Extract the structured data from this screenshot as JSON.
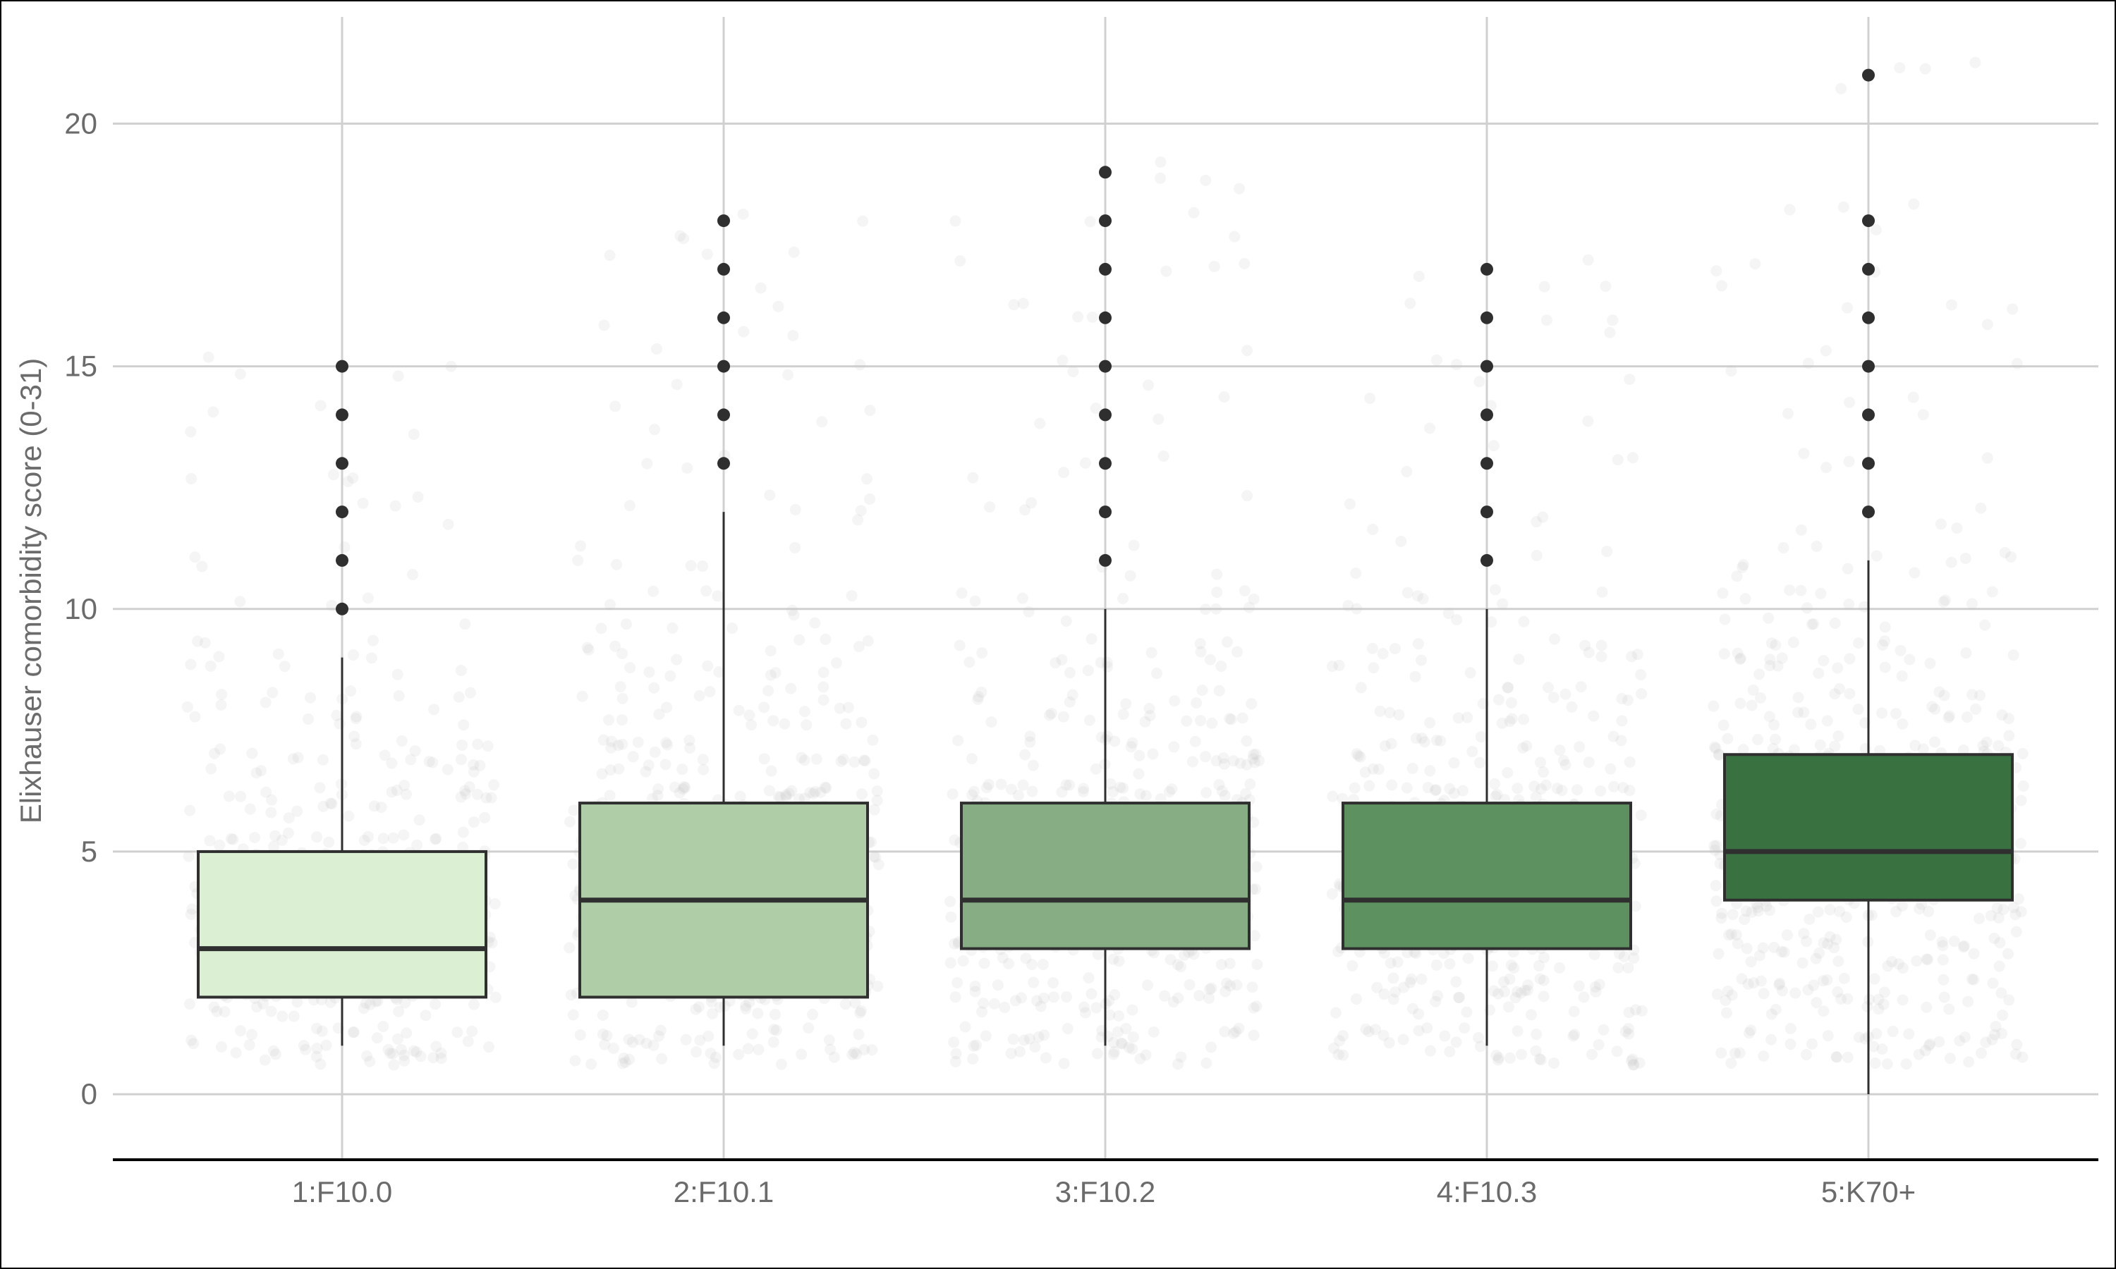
{
  "chart_data": {
    "type": "box",
    "title": "",
    "xlabel": "",
    "ylabel": "Elixhauser comorbidity score (0-31)",
    "ylim": [
      -1.35,
      22.2
    ],
    "y_ticks": [
      0,
      5,
      10,
      15,
      20
    ],
    "grid": true,
    "legend": "none",
    "categories": [
      "1:F10.0",
      "2:F10.1",
      "3:F10.2",
      "4:F10.3",
      "5:K70+"
    ],
    "boxes": [
      {
        "category": "1:F10.0",
        "whisker_low": 1,
        "q1": 2,
        "median": 3,
        "q3": 5,
        "whisker_high": 9,
        "outliers": [
          10,
          11,
          12,
          13,
          14,
          15
        ],
        "fill": "#dbf0d3"
      },
      {
        "category": "2:F10.1",
        "whisker_low": 1,
        "q1": 2,
        "median": 4,
        "q3": 6,
        "whisker_high": 12,
        "outliers": [
          13,
          14,
          15,
          16,
          17,
          18
        ],
        "fill": "#afcea8"
      },
      {
        "category": "3:F10.2",
        "whisker_low": 1,
        "q1": 3,
        "median": 4,
        "q3": 6,
        "whisker_high": 10,
        "outliers": [
          11,
          12,
          13,
          14,
          15,
          16,
          17,
          18,
          19
        ],
        "fill": "#86ad84"
      },
      {
        "category": "4:F10.3",
        "whisker_low": 1,
        "q1": 3,
        "median": 4,
        "q3": 6,
        "whisker_high": 10,
        "outliers": [
          11,
          12,
          13,
          14,
          15,
          16,
          17
        ],
        "fill": "#5e9160"
      },
      {
        "category": "5:K70+",
        "whisker_low": 0,
        "q1": 4,
        "median": 5,
        "q3": 7,
        "whisker_high": 11,
        "outliers": [
          12,
          13,
          14,
          15,
          16,
          17,
          18,
          21
        ],
        "fill": "#3a7141"
      }
    ],
    "jitter_points": true,
    "colors": {
      "grid": "#d0d0d0",
      "box_stroke": "#2f2f2f",
      "outlier": "#2f2f2f",
      "axis_line": "#000000",
      "jitter": "#c8c8c8"
    }
  }
}
